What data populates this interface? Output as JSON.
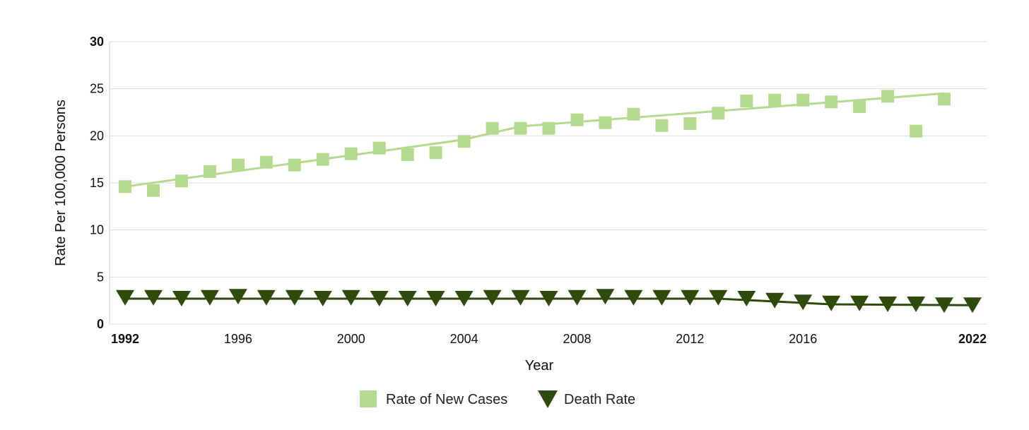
{
  "chart_data": {
    "type": "scatter",
    "title": "",
    "xlabel": "Year",
    "ylabel": "Rate Per 100,000 Persons",
    "xlim": [
      1992,
      2022
    ],
    "ylim": [
      0,
      30
    ],
    "x_ticks": [
      {
        "value": 1992,
        "label": "1992",
        "bold": true
      },
      {
        "value": 1996,
        "label": "1996",
        "bold": false
      },
      {
        "value": 2000,
        "label": "2000",
        "bold": false
      },
      {
        "value": 2004,
        "label": "2004",
        "bold": false
      },
      {
        "value": 2008,
        "label": "2008",
        "bold": false
      },
      {
        "value": 2012,
        "label": "2012",
        "bold": false
      },
      {
        "value": 2016,
        "label": "2016",
        "bold": false
      },
      {
        "value": 2022,
        "label": "2022",
        "bold": true
      }
    ],
    "y_ticks": [
      {
        "value": 0,
        "label": "0",
        "bold": true
      },
      {
        "value": 5,
        "label": "5",
        "bold": false
      },
      {
        "value": 10,
        "label": "10",
        "bold": false
      },
      {
        "value": 15,
        "label": "15",
        "bold": false
      },
      {
        "value": 20,
        "label": "20",
        "bold": false
      },
      {
        "value": 25,
        "label": "25",
        "bold": false
      },
      {
        "value": 30,
        "label": "30",
        "bold": true
      }
    ],
    "grid": true,
    "legend_position": "bottom",
    "series": [
      {
        "name": "Rate of New Cases",
        "marker": "square",
        "color": "#b5d98f",
        "x": [
          1992,
          1993,
          1994,
          1995,
          1996,
          1997,
          1998,
          1999,
          2000,
          2001,
          2002,
          2003,
          2004,
          2005,
          2006,
          2007,
          2008,
          2009,
          2010,
          2011,
          2012,
          2013,
          2014,
          2015,
          2016,
          2017,
          2018,
          2019,
          2020,
          2021
        ],
        "values": [
          14.6,
          14.2,
          15.2,
          16.2,
          16.9,
          17.2,
          16.9,
          17.5,
          18.1,
          18.7,
          18.0,
          18.2,
          19.4,
          20.8,
          20.8,
          20.8,
          21.7,
          21.4,
          22.3,
          21.1,
          21.3,
          22.4,
          23.7,
          23.8,
          23.8,
          23.6,
          23.1,
          24.2,
          20.5,
          23.9
        ],
        "trend": [
          {
            "x": 1992,
            "y": 14.6
          },
          {
            "x": 2004,
            "y": 19.6
          },
          {
            "x": 2006,
            "y": 21.0
          },
          {
            "x": 2021,
            "y": 24.5
          }
        ]
      },
      {
        "name": "Death Rate",
        "marker": "triangle-down",
        "color": "#2e4a0c",
        "x": [
          1992,
          1993,
          1994,
          1995,
          1996,
          1997,
          1998,
          1999,
          2000,
          2001,
          2002,
          2003,
          2004,
          2005,
          2006,
          2007,
          2008,
          2009,
          2010,
          2011,
          2012,
          2013,
          2014,
          2015,
          2016,
          2017,
          2018,
          2019,
          2020,
          2021,
          2022
        ],
        "values": [
          2.8,
          2.8,
          2.7,
          2.8,
          2.9,
          2.8,
          2.8,
          2.7,
          2.8,
          2.7,
          2.7,
          2.7,
          2.7,
          2.8,
          2.8,
          2.7,
          2.8,
          2.9,
          2.8,
          2.8,
          2.8,
          2.8,
          2.7,
          2.5,
          2.3,
          2.2,
          2.2,
          2.1,
          2.1,
          2.0,
          2.0
        ],
        "trend": [
          {
            "x": 1992,
            "y": 2.7
          },
          {
            "x": 2013,
            "y": 2.7
          },
          {
            "x": 2017,
            "y": 2.1
          },
          {
            "x": 2022,
            "y": 2.0
          }
        ]
      }
    ]
  },
  "colors": {
    "new_cases": "#b5d98f",
    "death_rate": "#2e4a0c",
    "grid": "#dcdcdc"
  }
}
